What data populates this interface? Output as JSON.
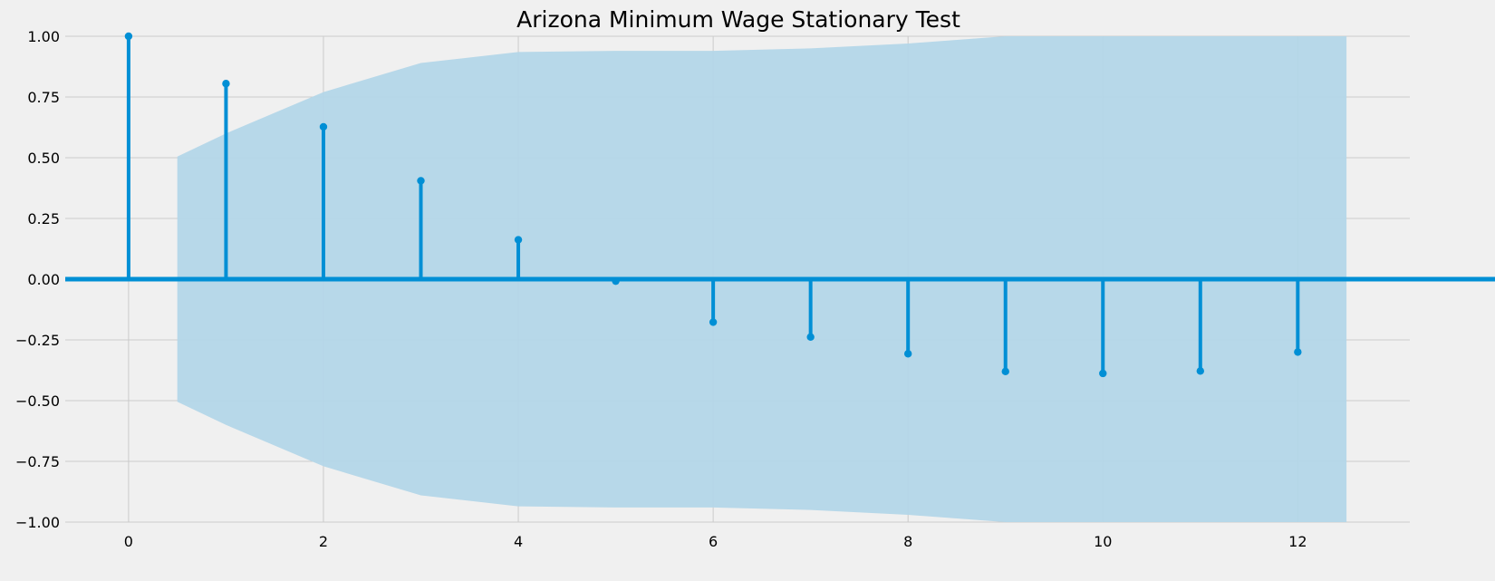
{
  "chart_data": {
    "type": "stem",
    "title": "Arizona Minimum Wage Stationary Test",
    "xlabel": "",
    "ylabel": "",
    "xlim": [
      -0.65,
      13.15
    ],
    "ylim": [
      -1.0,
      1.0
    ],
    "x_ticks": [
      0,
      2,
      4,
      6,
      8,
      10,
      12
    ],
    "y_ticks": [
      -1.0,
      -0.75,
      -0.5,
      -0.25,
      0.0,
      0.25,
      0.5,
      0.75,
      1.0
    ],
    "y_tick_labels": [
      "−1.00",
      "−0.75",
      "−0.50",
      "−0.25",
      "0.00",
      "0.25",
      "0.50",
      "0.75",
      "1.00"
    ],
    "grid": true,
    "lags": [
      0,
      1,
      2,
      3,
      4,
      5,
      6,
      7,
      8,
      9,
      10,
      11,
      12
    ],
    "values": [
      1.0,
      0.805,
      0.627,
      0.405,
      0.162,
      -0.008,
      -0.177,
      -0.238,
      -0.307,
      -0.38,
      -0.388,
      -0.378,
      -0.3
    ],
    "confidence_band": {
      "x": [
        0.5,
        1.0,
        2.0,
        3.0,
        4.0,
        5.0,
        6.0,
        7.0,
        8.0,
        9.0,
        10.0,
        11.0,
        12.0,
        12.5
      ],
      "upper": [
        0.505,
        0.6,
        0.77,
        0.89,
        0.935,
        0.94,
        0.94,
        0.95,
        0.97,
        1.0,
        1.0,
        1.0,
        1.0,
        1.0
      ],
      "lower": [
        -0.505,
        -0.6,
        -0.77,
        -0.89,
        -0.935,
        -0.94,
        -0.94,
        -0.95,
        -0.97,
        -1.0,
        -1.0,
        -1.0,
        -1.0,
        -1.0
      ]
    },
    "colors": {
      "stem": "#008fd5",
      "band": "#b3d6e8",
      "grid": "#cbcbcb",
      "background": "#f0f0f0"
    }
  }
}
